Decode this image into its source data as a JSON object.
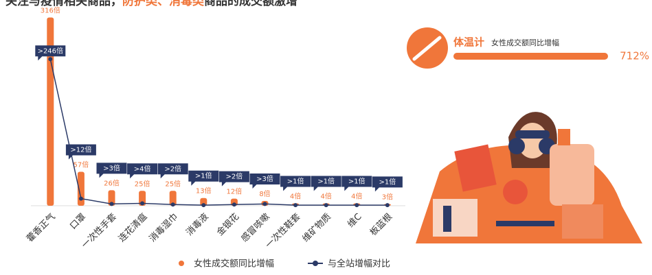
{
  "chart_data": {
    "type": "combo",
    "title": {
      "before": "关注与疫情相关商品，",
      "highlight": "防护类、消毒类",
      "after": "商品的成交额激增"
    },
    "categories": [
      "藿香正气",
      "口罩",
      "一次性手套",
      "连花清瘟",
      "消毒湿巾",
      "消毒液",
      "金银花",
      "感冒咳嗽",
      "一次性鞋套",
      "维矿物质",
      "维C",
      "板蓝根"
    ],
    "ylim": [
      0,
      320
    ],
    "series": [
      {
        "name": "女性成交额同比增幅",
        "color": "#f0763a",
        "type": "bar",
        "values": [
          316,
          57,
          26,
          25,
          25,
          13,
          12,
          8,
          4,
          4,
          4,
          3
        ],
        "value_labels": [
          "316倍",
          "57倍",
          "26倍",
          "25倍",
          "25倍",
          "13倍",
          "12倍",
          "8倍",
          "4倍",
          "4倍",
          "4倍",
          "3倍"
        ]
      },
      {
        "name": "与全站增幅对比",
        "color": "#2b3a67",
        "type": "line",
        "values": [
          246,
          12,
          3,
          4,
          2,
          1,
          2,
          3,
          1,
          1,
          1,
          1
        ],
        "value_labels": [
          ">246倍",
          ">12倍",
          ">3倍",
          ">4倍",
          ">2倍",
          ">1倍",
          ">2倍",
          ">3倍",
          ">1倍",
          ">1倍",
          ">1倍",
          ">1倍"
        ]
      }
    ],
    "highlight_card": {
      "title": "体温计",
      "subtitle": "女性成交额同比增幅",
      "value": 712,
      "value_label": "712%",
      "xlim": [
        0,
        712
      ],
      "color": "#f0763a"
    }
  }
}
